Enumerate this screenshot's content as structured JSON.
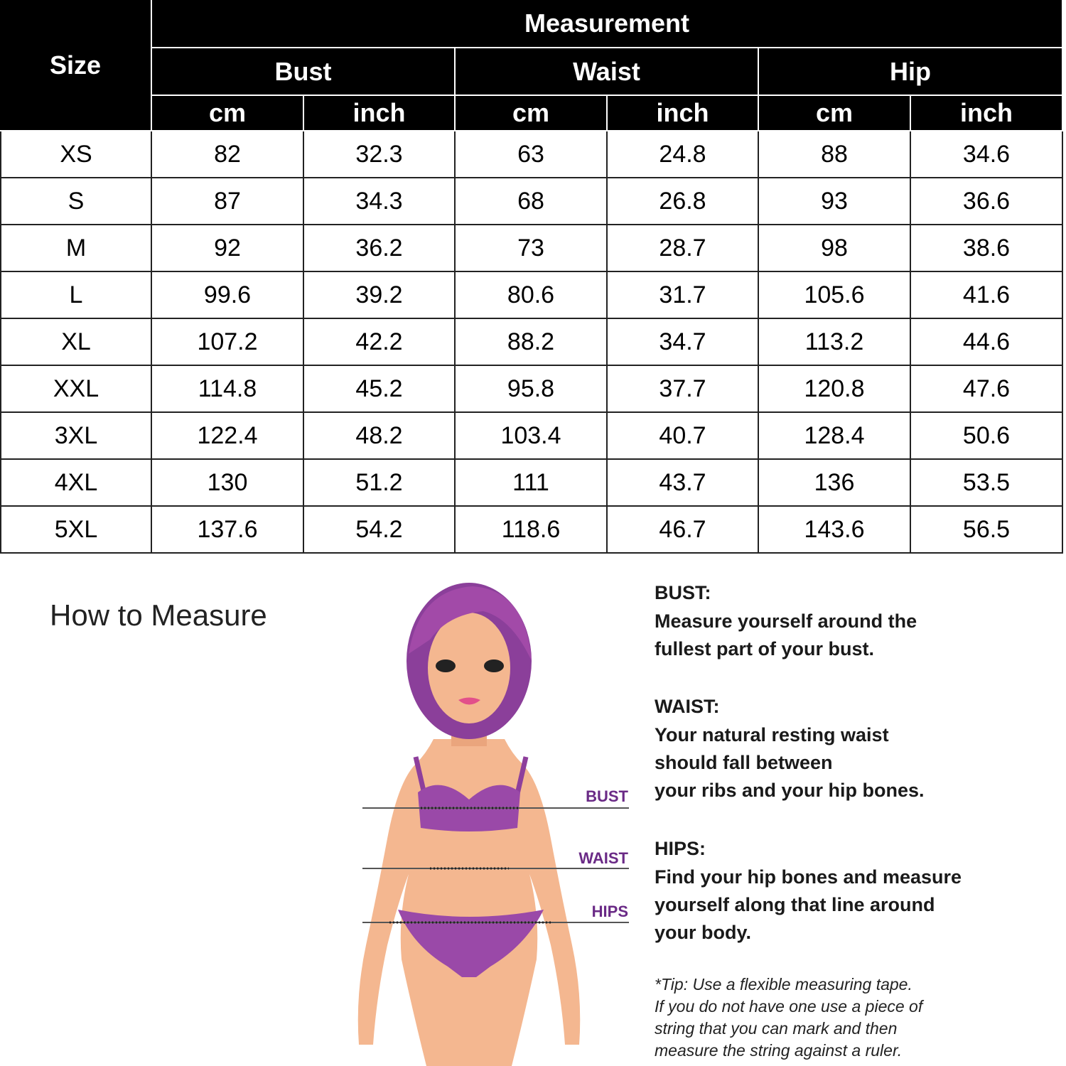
{
  "table": {
    "size_header": "Size",
    "group_header": "Measurement",
    "columns": [
      {
        "name": "Bust",
        "units": [
          "cm",
          "inch"
        ]
      },
      {
        "name": "Waist",
        "units": [
          "cm",
          "inch"
        ]
      },
      {
        "name": "Hip",
        "units": [
          "cm",
          "inch"
        ]
      }
    ],
    "rows": [
      [
        "XS",
        82,
        32.3,
        63,
        24.8,
        88,
        34.6
      ],
      [
        "S",
        87,
        34.3,
        68,
        26.8,
        93,
        36.6
      ],
      [
        "M",
        92,
        36.2,
        73,
        28.7,
        98,
        38.6
      ],
      [
        "L",
        99.6,
        39.2,
        80.6,
        31.7,
        105.6,
        41.6
      ],
      [
        "XL",
        107.2,
        42.2,
        88.2,
        34.7,
        113.2,
        44.6
      ],
      [
        "XXL",
        114.8,
        45.2,
        95.8,
        37.7,
        120.8,
        47.6
      ],
      [
        "3XL",
        122.4,
        48.2,
        103.4,
        40.7,
        128.4,
        50.6
      ],
      [
        "4XL",
        130,
        51.2,
        111,
        43.7,
        136,
        53.5
      ],
      [
        "5XL",
        137.6,
        54.2,
        118.6,
        46.7,
        143.6,
        56.5
      ]
    ]
  },
  "guide": {
    "title": "How to Measure",
    "figure_labels": [
      "BUST",
      "WAIST",
      "HIPS"
    ],
    "sections": [
      {
        "heading": "BUST:",
        "lines": [
          "Measure yourself around the",
          "fullest part of your bust."
        ]
      },
      {
        "heading": "WAIST:",
        "lines": [
          "Your natural resting waist",
          "should fall between",
          "your ribs and your hip bones."
        ]
      },
      {
        "heading": "HIPS:",
        "lines": [
          "Find your hip bones and measure",
          "yourself along that line around",
          "your body."
        ]
      }
    ],
    "tip": [
      "*Tip: Use a flexible measuring tape.",
      "If you do not have one use a piece of",
      "string that you can mark and then",
      "measure the string against a ruler."
    ]
  }
}
